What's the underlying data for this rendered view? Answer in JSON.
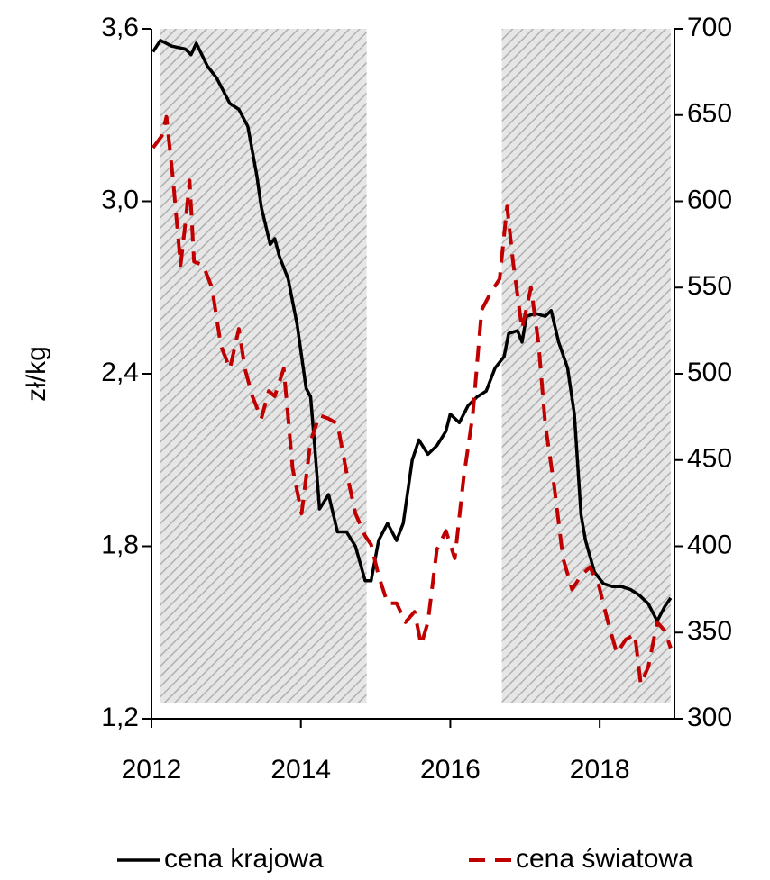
{
  "chart_data": {
    "type": "line",
    "y_label": "zł/kg",
    "xlim": [
      2012,
      2019
    ],
    "xticks": [
      2012,
      2014,
      2016,
      2018
    ],
    "ylim": [
      1.2,
      3.6
    ],
    "yticks": [
      {
        "value": 1.2,
        "label": "1,2"
      },
      {
        "value": 1.8,
        "label": "1,8"
      },
      {
        "value": 2.4,
        "label": "2,4"
      },
      {
        "value": 3.0,
        "label": "3,0"
      },
      {
        "value": 3.6,
        "label": "3,6"
      }
    ],
    "y2lim": [
      300,
      700
    ],
    "y2ticks": [
      300,
      350,
      400,
      450,
      500,
      550,
      600,
      650,
      700
    ],
    "shaded_periods": [
      [
        2012.12,
        2014.88
      ],
      [
        2016.69,
        2018.95
      ]
    ],
    "legend": "bottom",
    "series": [
      {
        "name": "cena krajowa",
        "color": "#000000",
        "dash": false,
        "axis": "y",
        "x": [
          2012.02,
          2012.12,
          2012.27,
          2012.45,
          2012.53,
          2012.6,
          2012.75,
          2012.87,
          2013.05,
          2013.17,
          2013.29,
          2013.41,
          2013.47,
          2013.59,
          2013.65,
          2013.71,
          2013.83,
          2013.95,
          2014.07,
          2014.13,
          2014.19,
          2014.25,
          2014.37,
          2014.49,
          2014.61,
          2014.73,
          2014.86,
          2014.94,
          2015.04,
          2015.16,
          2015.28,
          2015.37,
          2015.49,
          2015.58,
          2015.7,
          2015.82,
          2015.94,
          2016.0,
          2016.12,
          2016.24,
          2016.36,
          2016.48,
          2016.6,
          2016.72,
          2016.78,
          2016.9,
          2016.96,
          2017.02,
          2017.14,
          2017.27,
          2017.35,
          2017.45,
          2017.57,
          2017.66,
          2017.75,
          2017.81,
          2017.93,
          2018.05,
          2018.17,
          2018.29,
          2018.41,
          2018.53,
          2018.65,
          2018.77,
          2018.87,
          2018.95
        ],
        "values": [
          3.52,
          3.56,
          3.54,
          3.53,
          3.51,
          3.55,
          3.47,
          3.43,
          3.34,
          3.32,
          3.26,
          3.09,
          2.98,
          2.85,
          2.87,
          2.81,
          2.73,
          2.57,
          2.35,
          2.32,
          2.13,
          1.93,
          1.98,
          1.85,
          1.85,
          1.8,
          1.68,
          1.68,
          1.82,
          1.88,
          1.82,
          1.88,
          2.1,
          2.17,
          2.12,
          2.15,
          2.2,
          2.26,
          2.23,
          2.29,
          2.32,
          2.34,
          2.42,
          2.46,
          2.54,
          2.55,
          2.51,
          2.6,
          2.61,
          2.6,
          2.62,
          2.51,
          2.42,
          2.26,
          1.91,
          1.82,
          1.71,
          1.67,
          1.66,
          1.66,
          1.65,
          1.63,
          1.6,
          1.54,
          1.59,
          1.62
        ]
      },
      {
        "name": "cena światowa",
        "color": "#c00000",
        "dash": true,
        "axis": "y2",
        "x": [
          2012.02,
          2012.14,
          2012.2,
          2012.29,
          2012.39,
          2012.45,
          2012.51,
          2012.57,
          2012.69,
          2012.81,
          2012.93,
          2013.05,
          2013.17,
          2013.25,
          2013.35,
          2013.47,
          2013.57,
          2013.65,
          2013.77,
          2013.89,
          2014.01,
          2014.13,
          2014.25,
          2014.37,
          2014.49,
          2014.61,
          2014.73,
          2014.86,
          2014.94,
          2015.04,
          2015.16,
          2015.28,
          2015.4,
          2015.52,
          2015.61,
          2015.7,
          2015.82,
          2015.94,
          2016.06,
          2016.18,
          2016.3,
          2016.42,
          2016.54,
          2016.66,
          2016.76,
          2016.84,
          2016.96,
          2017.08,
          2017.18,
          2017.27,
          2017.39,
          2017.51,
          2017.63,
          2017.75,
          2017.87,
          2017.99,
          2018.11,
          2018.23,
          2018.35,
          2018.47,
          2018.55,
          2018.65,
          2018.77,
          2018.87,
          2018.95
        ],
        "values": [
          631,
          638,
          649,
          612,
          563,
          586,
          612,
          565,
          563,
          550,
          516,
          503,
          526,
          503,
          487,
          474,
          490,
          487,
          503,
          445,
          419,
          461,
          476,
          474,
          471,
          443,
          419,
          406,
          401,
          383,
          367,
          367,
          356,
          362,
          343,
          356,
          398,
          409,
          393,
          440,
          476,
          537,
          547,
          555,
          597,
          565,
          526,
          550,
          518,
          471,
          435,
          393,
          375,
          383,
          388,
          377,
          356,
          338,
          346,
          349,
          320,
          330,
          356,
          351,
          341
        ]
      }
    ]
  }
}
